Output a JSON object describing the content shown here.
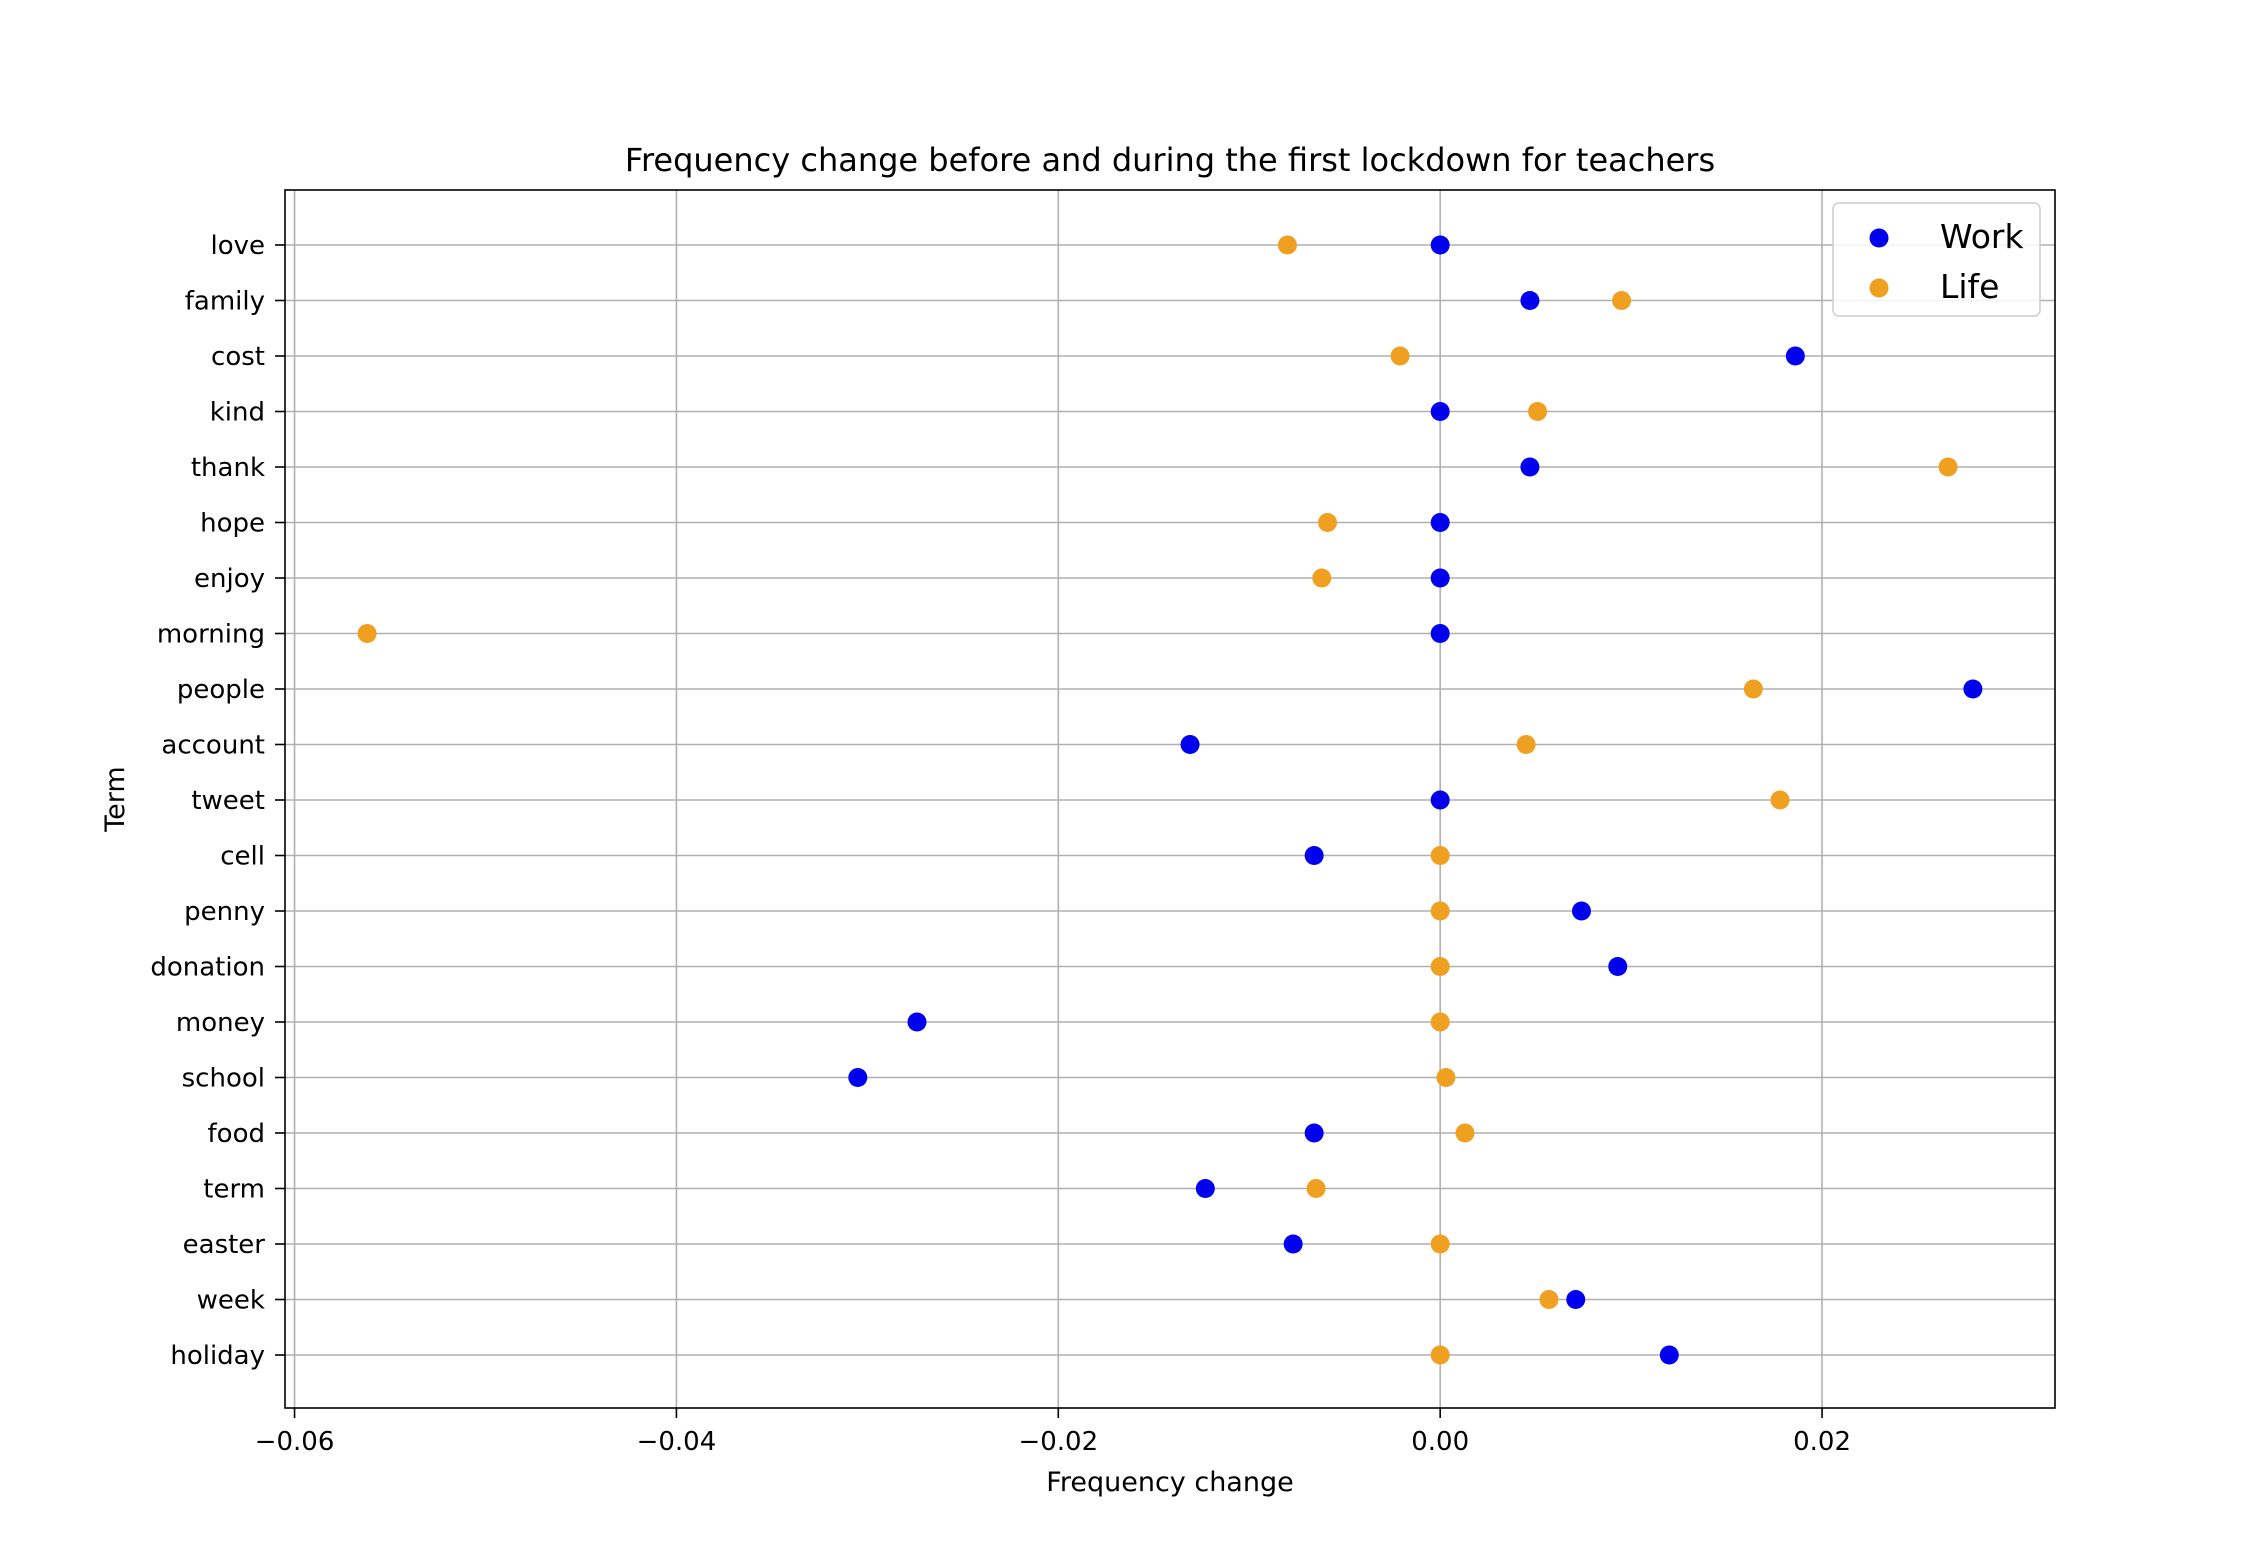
{
  "chart_data": {
    "type": "scatter",
    "title": "Frequency change before and during the first lockdown for teachers",
    "xlabel": "Frequency change",
    "ylabel": "Term",
    "xlim": [
      -0.0605,
      0.0322
    ],
    "xticks": [
      -0.06,
      -0.04,
      -0.02,
      0.0,
      0.02
    ],
    "xtick_labels": [
      "−0.06",
      "−0.04",
      "−0.02",
      "0.00",
      "0.02"
    ],
    "grid": true,
    "legend_position": "top-right",
    "categories": [
      "love",
      "family",
      "cost",
      "kind",
      "thank",
      "hope",
      "enjoy",
      "morning",
      "people",
      "account",
      "tweet",
      "cell",
      "penny",
      "donation",
      "money",
      "school",
      "food",
      "term",
      "easter",
      "week",
      "holiday"
    ],
    "series": [
      {
        "name": "Work",
        "color": "#0000ee",
        "values": [
          0.0,
          0.0047,
          0.0186,
          0.0,
          0.0047,
          0.0,
          0.0,
          0.0,
          0.0279,
          -0.0131,
          0.0,
          -0.0066,
          0.0074,
          0.0093,
          -0.0274,
          -0.0305,
          -0.0066,
          -0.0123,
          -0.0077,
          0.0071,
          0.012
        ]
      },
      {
        "name": "Life",
        "color": "#f0a020",
        "values": [
          -0.008,
          0.0095,
          -0.0021,
          0.0051,
          0.0266,
          -0.0059,
          -0.0062,
          -0.0562,
          0.0164,
          0.0045,
          0.0178,
          0.0,
          0.0,
          0.0,
          0.0,
          0.0003,
          0.0013,
          -0.0065,
          0.0,
          0.0057,
          0.0
        ]
      }
    ]
  }
}
